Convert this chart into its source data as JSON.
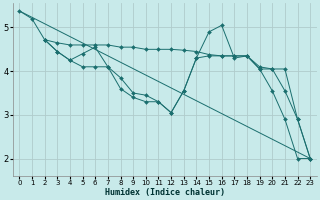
{
  "xlabel": "Humidex (Indice chaleur)",
  "background_color": "#c8eaea",
  "grid_color": "#b0cccc",
  "line_color": "#1a6e6e",
  "xlim": [
    -0.5,
    23.5
  ],
  "ylim": [
    1.6,
    5.55
  ],
  "yticks": [
    2,
    3,
    4,
    5
  ],
  "xticks": [
    0,
    1,
    2,
    3,
    4,
    5,
    6,
    7,
    8,
    9,
    10,
    11,
    12,
    13,
    14,
    15,
    16,
    17,
    18,
    19,
    20,
    21,
    22,
    23
  ],
  "lines": [
    {
      "x": [
        0,
        23
      ],
      "y": [
        5.38,
        2.0
      ],
      "markers": false
    },
    {
      "x": [
        0,
        1,
        2,
        3,
        4,
        5,
        6,
        7,
        8,
        9,
        10,
        11,
        12,
        13,
        14,
        15,
        16,
        17,
        18,
        19,
        20,
        21,
        22,
        23
      ],
      "y": [
        5.38,
        5.2,
        4.72,
        4.65,
        4.6,
        4.6,
        4.6,
        4.6,
        4.55,
        4.55,
        4.5,
        4.5,
        4.5,
        4.48,
        4.45,
        4.38,
        4.35,
        4.35,
        4.35,
        4.1,
        4.05,
        3.55,
        2.9,
        2.0
      ],
      "markers": true
    },
    {
      "x": [
        2,
        3,
        4,
        5,
        6,
        7,
        8,
        9,
        10,
        11,
        12,
        13,
        14,
        15,
        16,
        17,
        18,
        19,
        20,
        21,
        22,
        23
      ],
      "y": [
        4.72,
        4.45,
        4.25,
        4.1,
        4.1,
        4.1,
        3.6,
        3.4,
        3.3,
        3.3,
        3.05,
        3.55,
        4.3,
        4.35,
        4.35,
        4.35,
        4.35,
        4.05,
        3.55,
        2.9,
        2.0,
        2.0
      ],
      "markers": true
    },
    {
      "x": [
        2,
        3,
        4,
        5,
        6,
        7,
        8,
        9,
        10,
        11,
        12,
        13,
        14,
        15,
        16,
        17,
        18,
        19,
        20,
        21,
        22,
        23
      ],
      "y": [
        4.72,
        4.45,
        4.25,
        4.4,
        4.55,
        4.1,
        3.85,
        3.5,
        3.45,
        3.3,
        3.05,
        3.55,
        4.3,
        4.9,
        5.05,
        4.3,
        4.35,
        4.05,
        4.05,
        4.05,
        2.9,
        2.0
      ],
      "markers": true
    }
  ]
}
